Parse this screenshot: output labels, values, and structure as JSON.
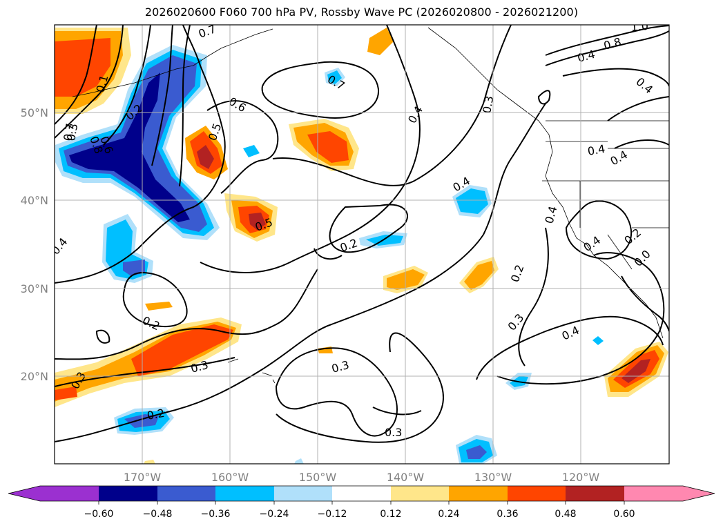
{
  "title": "2026020600 F060 700 hPa PV, Rossby Wave PC (2026020800 - 2026021200)",
  "lat_labels": [
    "50°N",
    "40°N",
    "30°N",
    "20°N"
  ],
  "lon_labels": [
    "170°W",
    "160°W",
    "150°W",
    "140°W",
    "130°W",
    "120°W"
  ],
  "colorbar": {
    "ticks": [
      "−0.60",
      "−0.48",
      "−0.36",
      "−0.24",
      "−0.12",
      "0.12",
      "0.24",
      "0.36",
      "0.48",
      "0.60"
    ],
    "colors": [
      "#9b30d0",
      "#00008b",
      "#3a5bd0",
      "#00bfff",
      "#b0e0fa",
      "#ffffff",
      "#ffe68a",
      "#ffa500",
      "#ff4500",
      "#b22222",
      "#ff88b0"
    ]
  },
  "contour_labels": [
    "0.7",
    "0.6",
    "0.5",
    "0.4",
    "0.2",
    "0.3",
    "0.8",
    "0.6",
    "0.7",
    "1.0",
    "0.4",
    "0.2",
    "0.3",
    "0.5",
    "0.3",
    "0.2",
    "0.3",
    "0.7",
    "0.4",
    "0.4",
    "0.4",
    "0.8",
    "0.4",
    "0.4",
    "0.2",
    "0.3",
    "0.3",
    "0.4",
    "0.3",
    "0.2",
    "0.4",
    "0.2",
    "0.1",
    "0.0",
    "0.4"
  ],
  "colors": {
    "grid": "#b0b0b0",
    "contour": "#000000",
    "axis_labels": "#808080"
  }
}
